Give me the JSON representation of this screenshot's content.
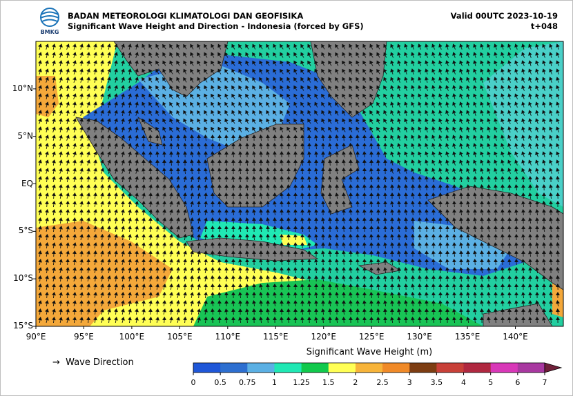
{
  "header": {
    "agency": "BADAN METEOROLOGI KLIMATOLOGI DAN GEOFISIKA",
    "product": "Significant Wave Height and Direction - Indonesia (forced by GFS)",
    "valid": "Valid 00UTC 2023-10-19",
    "lead": "t+048",
    "logo_text": "BMKG"
  },
  "map": {
    "lon_labels": [
      "90°E",
      "95°E",
      "100°E",
      "105°E",
      "110°E",
      "115°E",
      "120°E",
      "125°E",
      "130°E",
      "135°E",
      "140°E"
    ],
    "lat_labels": [
      "10°N",
      "5°N",
      "EQ",
      "5°S",
      "10°S",
      "15°S"
    ],
    "lon_range": [
      90,
      145
    ],
    "lat_range": [
      -15,
      15
    ],
    "land_color": "#808080"
  },
  "legend": {
    "direction_symbol": "→",
    "direction_label": "Wave Direction"
  },
  "colorbar": {
    "title": "Significant Wave Height (m)",
    "ticks": [
      "0",
      "0.5",
      "0.75",
      "1",
      "1.25",
      "1.5",
      "2",
      "2.5",
      "3",
      "3.5",
      "4",
      "5",
      "6",
      "7"
    ],
    "colors": [
      "#1f57d8",
      "#2d6fd0",
      "#5bb0e4",
      "#20e8b4",
      "#11c94c",
      "#ffff55",
      "#f7b43a",
      "#f08a28",
      "#7d3d12",
      "#c84038",
      "#b02840",
      "#d838b8",
      "#a838a0"
    ],
    "extend_color": "#70203a"
  }
}
